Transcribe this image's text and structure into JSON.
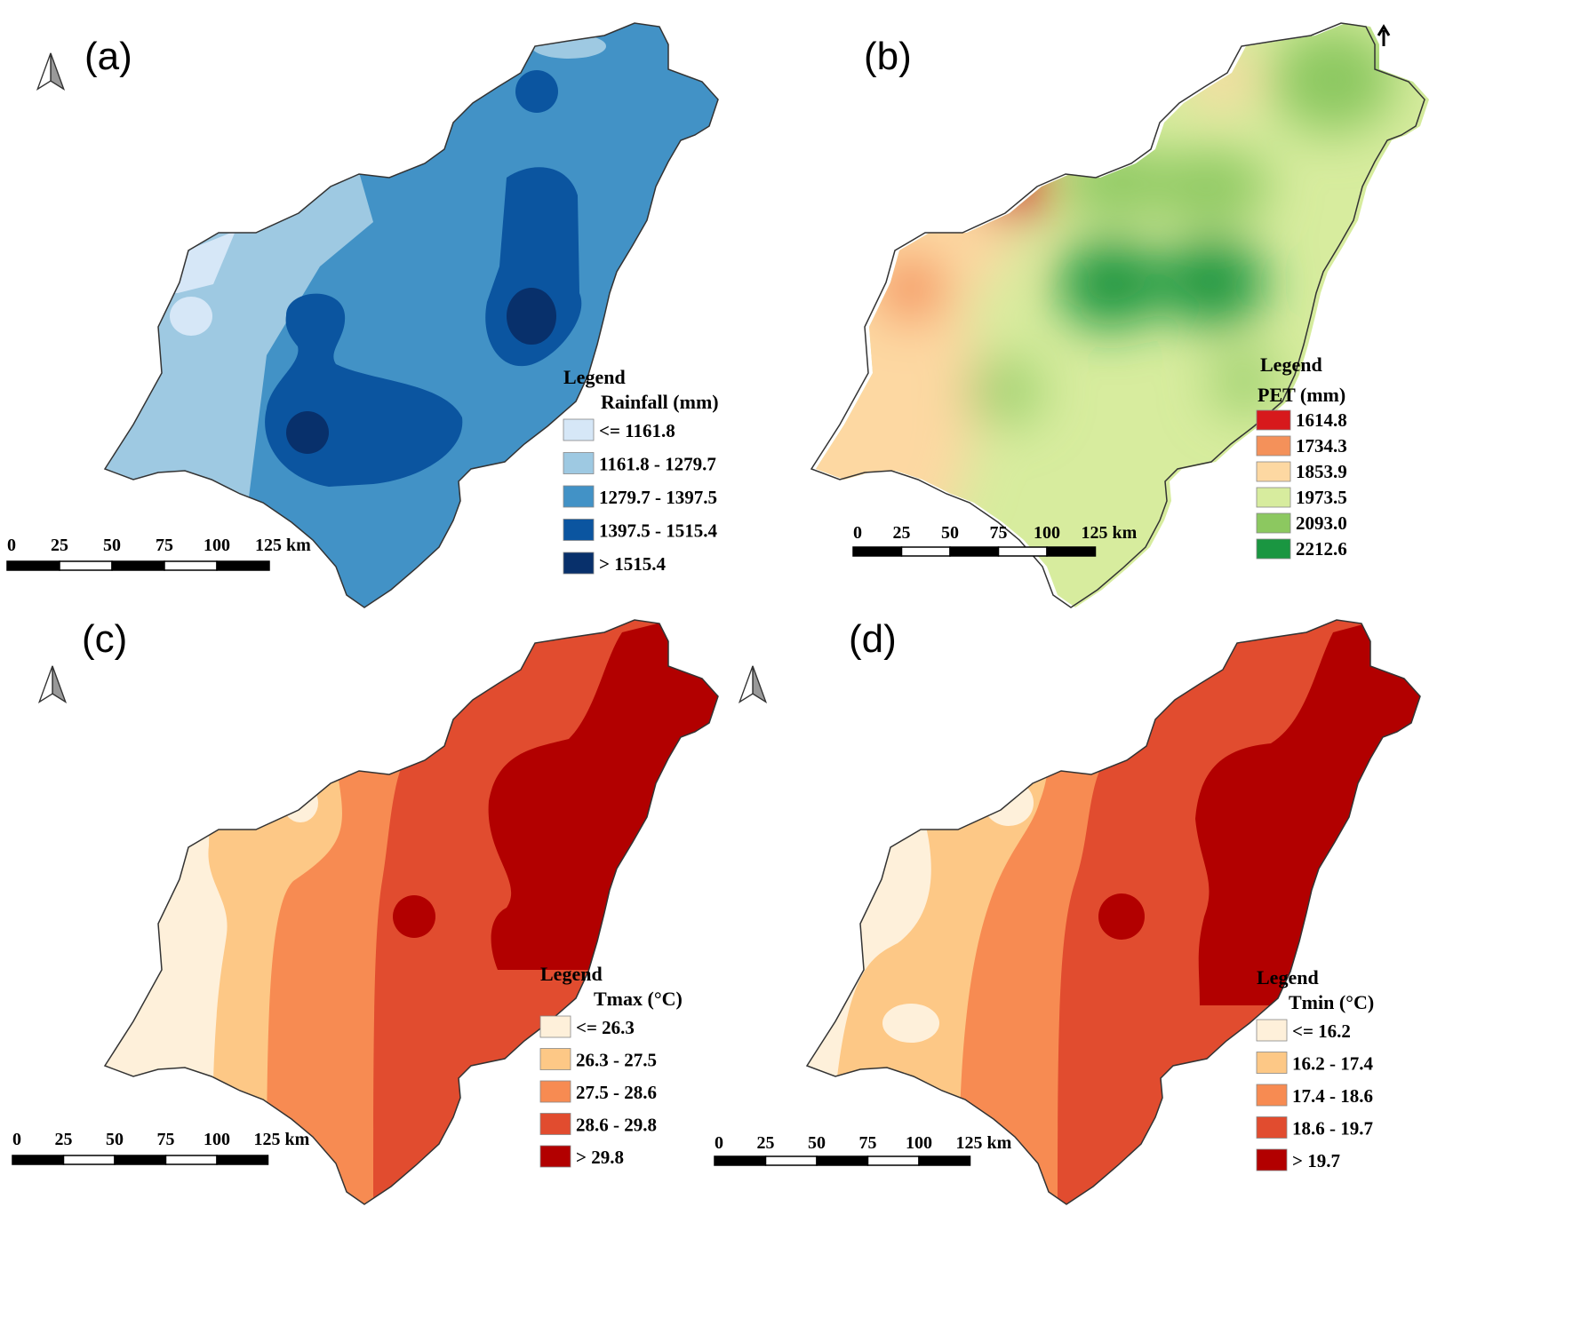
{
  "colors": {
    "rainfall": [
      "#d6e7f7",
      "#9ec9e2",
      "#4292c6",
      "#0b55a0",
      "#08306b"
    ],
    "pet": [
      "#d7191c",
      "#f4915a",
      "#fdd8a2",
      "#d7ec9e",
      "#8cc860",
      "#1a9641"
    ],
    "temperature": [
      "#fef0da",
      "#fdc886",
      "#f78b52",
      "#e14c2f",
      "#b20000"
    ]
  },
  "panels": [
    {
      "id": "a",
      "label": "(a)",
      "legend": {
        "title": "Legend",
        "subtitle": "Rainfall (mm)",
        "items": [
          "<= 1161.8",
          "1161.8 - 1279.7",
          "1279.7 - 1397.5",
          "1397.5 - 1515.4",
          "> 1515.4"
        ]
      },
      "scale": {
        "ticks": [
          "0",
          "25",
          "50",
          "75",
          "100",
          "125 km"
        ]
      }
    },
    {
      "id": "b",
      "label": "(b)",
      "legend": {
        "title": "Legend",
        "subtitle": "PET (mm)",
        "items": [
          "1614.8",
          "1734.3",
          "1853.9",
          "1973.5",
          "2093.0",
          "2212.6"
        ]
      },
      "scale": {
        "ticks": [
          "0",
          "25",
          "50",
          "75",
          "100",
          "125 km"
        ]
      }
    },
    {
      "id": "c",
      "label": "(c)",
      "legend": {
        "title": "Legend",
        "subtitle": "Tmax (°C)",
        "items": [
          "<= 26.3",
          "26.3 - 27.5",
          "27.5 - 28.6",
          "28.6 - 29.8",
          "> 29.8"
        ]
      },
      "scale": {
        "ticks": [
          "0",
          "25",
          "50",
          "75",
          "100",
          "125 km"
        ]
      }
    },
    {
      "id": "d",
      "label": "(d)",
      "legend": {
        "title": "Legend",
        "subtitle": "Tmin (°C)",
        "items": [
          "<= 16.2",
          "16.2 - 17.4",
          "17.4 - 18.6",
          "18.6 - 19.7",
          "> 19.7"
        ]
      },
      "scale": {
        "ticks": [
          "0",
          "25",
          "50",
          "75",
          "100",
          "125 km"
        ]
      }
    }
  ]
}
